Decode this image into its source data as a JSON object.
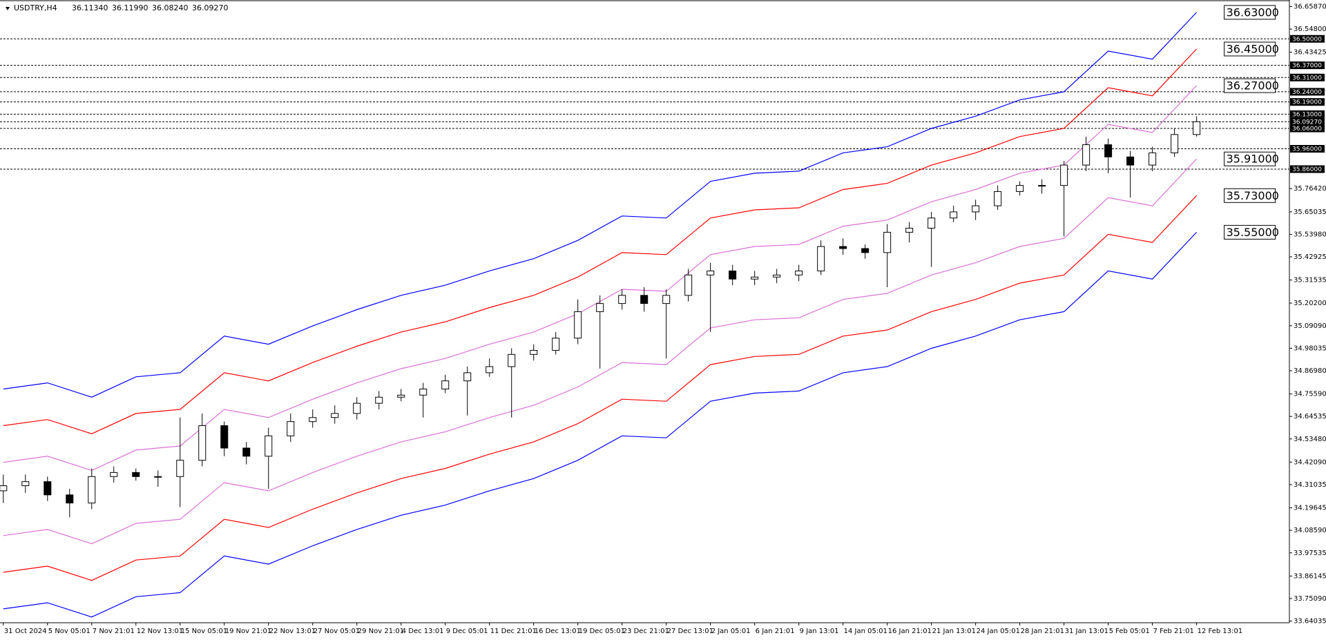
{
  "chart_data": {
    "type": "candlestick",
    "title": "USDTRY,H4",
    "quote": [
      "36.11340",
      "36.11990",
      "36.08240",
      "36.09270"
    ],
    "up_color": "#ffffff",
    "down_color": "#000000",
    "wick_color": "#000000",
    "open": [
      34.28,
      34.305,
      34.325,
      34.26,
      34.22,
      34.35,
      34.37,
      34.35,
      34.35,
      34.43,
      34.6,
      34.49,
      34.45,
      34.55,
      34.62,
      34.64,
      34.66,
      34.71,
      34.74,
      34.75,
      34.78,
      34.82,
      34.86,
      34.89,
      34.95,
      34.97,
      35.03,
      35.16,
      35.2,
      35.24,
      35.2,
      35.24,
      35.34,
      35.36,
      35.32,
      35.33,
      35.34,
      35.36,
      35.48,
      35.47,
      35.45,
      35.55,
      35.57,
      35.62,
      35.65,
      35.68,
      35.75,
      35.78,
      35.78,
      35.88,
      35.98,
      35.92,
      35.88,
      35.94,
      36.03
    ],
    "high": [
      34.36,
      34.36,
      34.35,
      34.29,
      34.39,
      34.4,
      34.39,
      34.38,
      34.64,
      34.66,
      34.62,
      34.52,
      34.59,
      34.66,
      34.68,
      34.7,
      34.74,
      34.77,
      34.78,
      34.81,
      34.85,
      34.89,
      34.93,
      34.98,
      35.0,
      35.06,
      35.22,
      35.24,
      35.27,
      35.28,
      35.27,
      35.37,
      35.4,
      35.39,
      35.36,
      35.37,
      35.39,
      35.51,
      35.52,
      35.49,
      35.59,
      35.6,
      35.65,
      35.68,
      35.71,
      35.78,
      35.8,
      35.81,
      35.9,
      36.02,
      36.01,
      35.95,
      35.97,
      36.06,
      36.12
    ],
    "low": [
      34.22,
      34.27,
      34.23,
      34.15,
      34.19,
      34.32,
      34.33,
      34.3,
      34.2,
      34.4,
      34.45,
      34.41,
      34.29,
      34.52,
      34.59,
      34.61,
      34.63,
      34.68,
      34.72,
      34.64,
      34.76,
      34.65,
      34.84,
      34.64,
      34.92,
      34.95,
      35.0,
      34.88,
      35.17,
      35.16,
      34.93,
      35.21,
      35.06,
      35.29,
      35.29,
      35.3,
      35.31,
      35.34,
      35.44,
      35.42,
      35.28,
      35.5,
      35.38,
      35.6,
      35.61,
      35.66,
      35.73,
      35.74,
      35.53,
      35.85,
      35.84,
      35.72,
      35.85,
      35.92,
      36.02
    ],
    "close": [
      34.305,
      34.325,
      34.26,
      34.22,
      34.35,
      34.37,
      34.35,
      34.35,
      34.43,
      34.6,
      34.49,
      34.45,
      34.55,
      34.62,
      34.64,
      34.66,
      34.71,
      34.74,
      34.75,
      34.78,
      34.82,
      34.86,
      34.89,
      34.95,
      34.97,
      35.03,
      35.16,
      35.2,
      35.24,
      35.2,
      35.24,
      35.34,
      35.36,
      35.32,
      35.33,
      35.34,
      35.36,
      35.48,
      35.47,
      35.45,
      35.55,
      35.57,
      35.62,
      35.65,
      35.68,
      35.75,
      35.78,
      35.78,
      35.88,
      35.98,
      35.92,
      35.88,
      35.94,
      36.03,
      36.0927
    ],
    "bands": {
      "x": [
        0,
        2,
        4,
        6,
        8,
        10,
        12,
        14,
        16,
        18,
        20,
        22,
        24,
        26,
        28,
        30,
        32,
        34,
        36,
        38,
        40,
        42,
        44,
        46,
        48,
        50,
        52,
        54
      ],
      "series": [
        {
          "color": "#0000ff",
          "last_label": "36.63000",
          "values": [
            34.78,
            34.81,
            34.74,
            34.84,
            34.86,
            35.04,
            35.0,
            35.09,
            35.17,
            35.24,
            35.29,
            35.36,
            35.42,
            35.51,
            35.63,
            35.62,
            35.8,
            35.84,
            35.85,
            35.94,
            35.97,
            36.06,
            36.12,
            36.2,
            36.24,
            36.44,
            36.4,
            36.63
          ]
        },
        {
          "color": "#ff0000",
          "last_label": "36.45000",
          "values": [
            34.6,
            34.63,
            34.56,
            34.66,
            34.68,
            34.86,
            34.82,
            34.91,
            34.99,
            35.06,
            35.11,
            35.18,
            35.24,
            35.33,
            35.45,
            35.44,
            35.62,
            35.66,
            35.67,
            35.76,
            35.79,
            35.88,
            35.94,
            36.02,
            36.06,
            36.26,
            36.22,
            36.45
          ]
        },
        {
          "color": "#da70d6",
          "last_label": "36.27000",
          "values": [
            34.42,
            34.45,
            34.38,
            34.48,
            34.5,
            34.68,
            34.64,
            34.73,
            34.81,
            34.88,
            34.93,
            35.0,
            35.06,
            35.15,
            35.27,
            35.26,
            35.44,
            35.48,
            35.49,
            35.58,
            35.61,
            35.7,
            35.76,
            35.84,
            35.88,
            36.08,
            36.04,
            36.27
          ]
        },
        {
          "color": "#da70d6",
          "last_label": "35.91000",
          "values": [
            34.06,
            34.09,
            34.02,
            34.12,
            34.14,
            34.32,
            34.28,
            34.37,
            34.45,
            34.52,
            34.57,
            34.64,
            34.7,
            34.79,
            34.91,
            34.9,
            35.08,
            35.12,
            35.13,
            35.22,
            35.25,
            35.34,
            35.4,
            35.48,
            35.52,
            35.72,
            35.68,
            35.91
          ]
        },
        {
          "color": "#ff0000",
          "last_label": "35.73000",
          "values": [
            33.88,
            33.91,
            33.84,
            33.94,
            33.96,
            34.14,
            34.1,
            34.19,
            34.27,
            34.34,
            34.39,
            34.46,
            34.52,
            34.61,
            34.73,
            34.72,
            34.9,
            34.94,
            34.95,
            35.04,
            35.07,
            35.16,
            35.22,
            35.3,
            35.34,
            35.54,
            35.5,
            35.73
          ]
        },
        {
          "color": "#0000ff",
          "last_label": "35.55000",
          "values": [
            33.7,
            33.73,
            33.66,
            33.76,
            33.78,
            33.96,
            33.92,
            34.01,
            34.09,
            34.16,
            34.21,
            34.28,
            34.34,
            34.43,
            34.55,
            34.54,
            34.72,
            34.76,
            34.77,
            34.86,
            34.89,
            34.98,
            35.04,
            35.12,
            35.16,
            35.36,
            35.32,
            35.55
          ]
        }
      ]
    },
    "levels": [
      {
        "value": 36.5,
        "label": "36.50000"
      },
      {
        "value": 36.37,
        "label": "36.37000"
      },
      {
        "value": 36.31,
        "label": "36.31000"
      },
      {
        "value": 36.24,
        "label": "36.24000"
      },
      {
        "value": 36.19,
        "label": "36.19000"
      },
      {
        "value": 36.13,
        "label": "36.13000"
      },
      {
        "value": 36.0927,
        "label": "36.09270"
      },
      {
        "value": 36.06,
        "label": "36.06000"
      },
      {
        "value": 35.96,
        "label": "35.96000"
      },
      {
        "value": 35.86,
        "label": "35.86000"
      }
    ],
    "xlim": [
      -0.15,
      58.2
    ],
    "ylim": [
      33.632,
      36.684
    ],
    "xticks": [
      {
        "value": 0,
        "label": "31 Oct 2024"
      },
      {
        "value": 2,
        "label": "5 Nov 05:01"
      },
      {
        "value": 4,
        "label": "7 Nov 21:01"
      },
      {
        "value": 6,
        "label": "12 Nov 13:01"
      },
      {
        "value": 8,
        "label": "15 Nov 05:01"
      },
      {
        "value": 10,
        "label": "19 Nov 21:01"
      },
      {
        "value": 12,
        "label": "22 Nov 13:01"
      },
      {
        "value": 14,
        "label": "27 Nov 05:01"
      },
      {
        "value": 16,
        "label": "29 Nov 21:01"
      },
      {
        "value": 18,
        "label": "4 Dec 13:01"
      },
      {
        "value": 20,
        "label": "9 Dec 05:01"
      },
      {
        "value": 22,
        "label": "11 Dec 21:01"
      },
      {
        "value": 24,
        "label": "16 Dec 13:01"
      },
      {
        "value": 26,
        "label": "19 Dec 05:01"
      },
      {
        "value": 28,
        "label": "23 Dec 21:01"
      },
      {
        "value": 30,
        "label": "27 Dec 13:01"
      },
      {
        "value": 32,
        "label": "2 Jan 05:01"
      },
      {
        "value": 34,
        "label": "6 Jan 21:01"
      },
      {
        "value": 36,
        "label": "9 Jan 13:01"
      },
      {
        "value": 38,
        "label": "14 Jan 05:01"
      },
      {
        "value": 40,
        "label": "16 Jan 21:01"
      },
      {
        "value": 42,
        "label": "21 Jan 13:01"
      },
      {
        "value": 44,
        "label": "24 Jan 05:01"
      },
      {
        "value": 46,
        "label": "28 Jan 21:01"
      },
      {
        "value": 48,
        "label": "31 Jan 13:01"
      },
      {
        "value": 50,
        "label": "5 Feb 05:01"
      },
      {
        "value": 52,
        "label": "7 Feb 21:01"
      },
      {
        "value": 54,
        "label": "12 Feb 13:01"
      }
    ],
    "yticks": [
      {
        "value": 36.6587,
        "label": "36.65870"
      },
      {
        "value": 36.548,
        "label": "36.54800"
      },
      36.43425,
      {
        "value": 35.7642,
        "label": "35.76420"
      },
      35.65035,
      {
        "value": 35.5398,
        "label": "35.53980"
      },
      35.42925,
      35.31535,
      {
        "value": 35.202,
        "label": "35.20200"
      },
      {
        "value": 35.0909,
        "label": "35.09090"
      },
      34.98035,
      {
        "value": 34.8698,
        "label": "34.86980"
      },
      {
        "value": 34.7559,
        "label": "34.75590"
      },
      34.64535,
      {
        "value": 34.5348,
        "label": "34.53480"
      },
      {
        "value": 34.4209,
        "label": "34.42090"
      },
      34.31035,
      34.19645,
      {
        "value": 34.0859,
        "label": "34.08590"
      },
      33.97535,
      33.86145,
      {
        "value": 33.7509,
        "label": "33.75090"
      },
      33.64035
    ]
  }
}
